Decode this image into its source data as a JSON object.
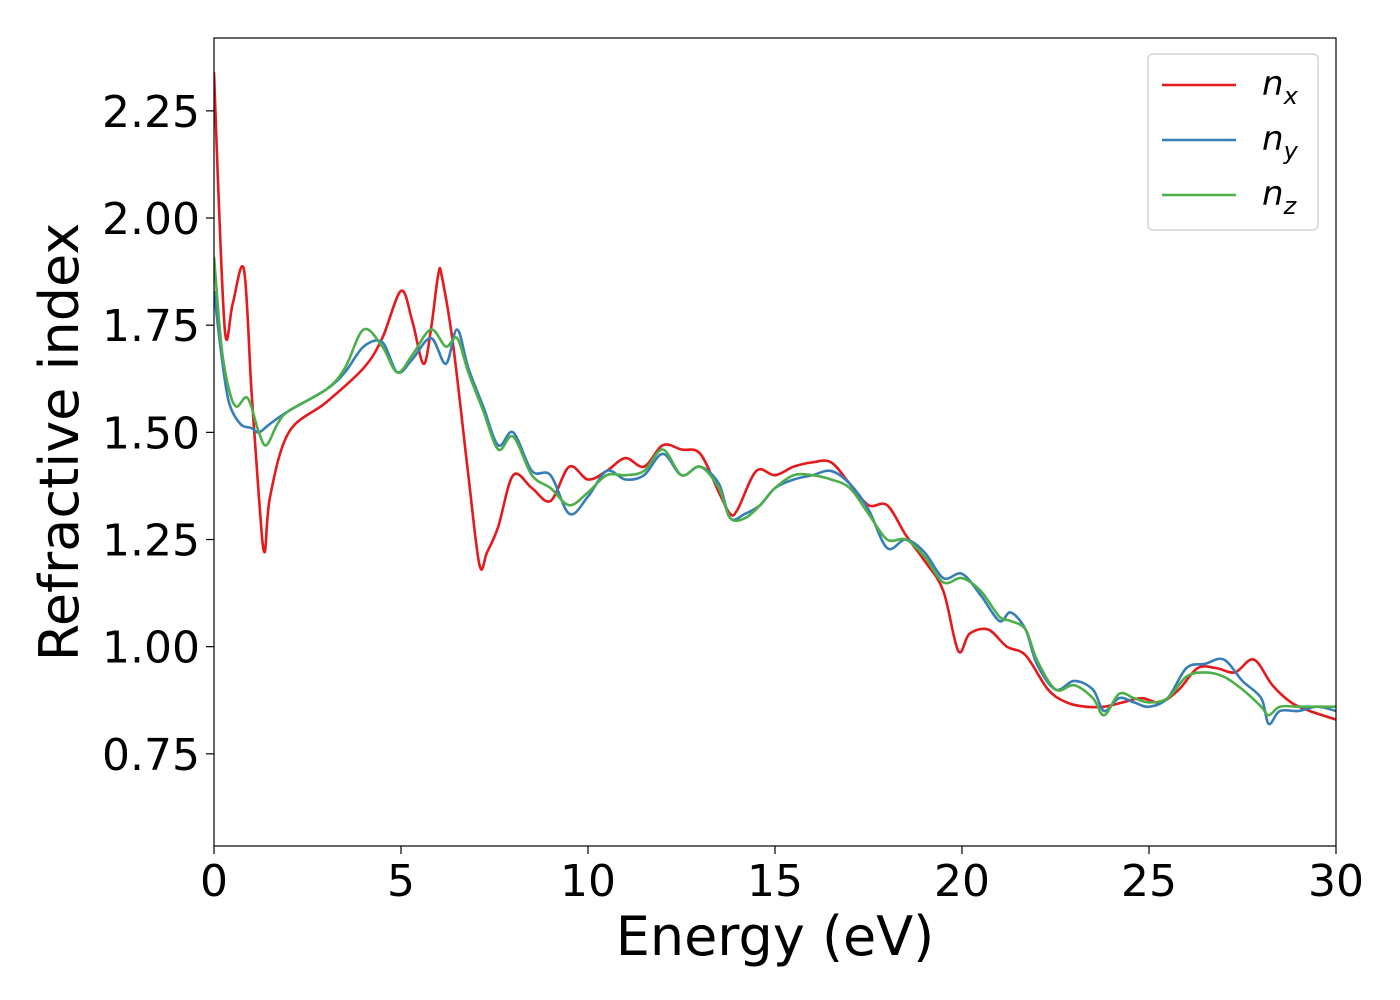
{
  "chart_data": {
    "type": "line",
    "title": "",
    "xlabel": "Energy (eV)",
    "ylabel": "Refractive index",
    "xlim": [
      0,
      30
    ],
    "ylim": [
      0.535,
      2.42
    ],
    "xticks": [
      "0",
      "5",
      "10",
      "15",
      "20",
      "25",
      "30"
    ],
    "yticks": [
      "0.75",
      "1.00",
      "1.25",
      "1.50",
      "1.75",
      "2.00",
      "2.25"
    ],
    "grid": false,
    "legend_position": "top-right",
    "series": [
      {
        "name": "n",
        "subscript": "x",
        "color": "#e41a1c",
        "x": [
          0,
          0.1,
          0.3,
          0.5,
          0.8,
          1.0,
          1.2,
          1.35,
          1.5,
          2.0,
          3.0,
          4.0,
          4.5,
          5.0,
          5.3,
          5.6,
          5.8,
          6.0,
          6.1,
          6.4,
          6.8,
          7.1,
          7.3,
          7.6,
          8.0,
          8.5,
          9.0,
          9.5,
          10.0,
          10.5,
          11.0,
          11.5,
          12.0,
          12.5,
          13.0,
          13.5,
          13.8,
          14.0,
          14.5,
          15.0,
          15.5,
          16.0,
          16.5,
          17.0,
          17.5,
          18.0,
          18.5,
          19.0,
          19.5,
          19.9,
          20.2,
          20.7,
          21.2,
          21.7,
          22.3,
          22.8,
          23.3,
          23.8,
          24.3,
          24.8,
          25.3,
          25.8,
          26.3,
          26.8,
          27.3,
          27.8,
          28.3,
          28.8,
          29.3,
          30.0
        ],
        "values": [
          2.34,
          2.1,
          1.73,
          1.8,
          1.88,
          1.6,
          1.35,
          1.22,
          1.35,
          1.5,
          1.57,
          1.65,
          1.72,
          1.83,
          1.76,
          1.66,
          1.74,
          1.87,
          1.86,
          1.7,
          1.4,
          1.19,
          1.22,
          1.28,
          1.4,
          1.37,
          1.34,
          1.42,
          1.39,
          1.41,
          1.44,
          1.42,
          1.47,
          1.46,
          1.45,
          1.36,
          1.31,
          1.32,
          1.41,
          1.4,
          1.42,
          1.43,
          1.43,
          1.38,
          1.33,
          1.33,
          1.26,
          1.2,
          1.13,
          0.99,
          1.03,
          1.04,
          1.0,
          0.98,
          0.9,
          0.87,
          0.86,
          0.86,
          0.87,
          0.88,
          0.87,
          0.9,
          0.95,
          0.95,
          0.94,
          0.97,
          0.91,
          0.87,
          0.85,
          0.83
        ]
      },
      {
        "name": "n",
        "subscript": "y",
        "color": "#377eb8",
        "x": [
          0,
          0.2,
          0.4,
          0.7,
          1.0,
          1.2,
          1.5,
          2.0,
          3.0,
          3.5,
          4.0,
          4.5,
          4.9,
          5.3,
          5.8,
          6.2,
          6.5,
          6.8,
          7.2,
          7.6,
          8.0,
          8.5,
          9.0,
          9.5,
          10.0,
          10.5,
          11.0,
          11.5,
          12.0,
          12.5,
          13.0,
          13.5,
          13.8,
          14.2,
          14.6,
          15.0,
          15.5,
          16.0,
          16.5,
          17.0,
          17.5,
          18.0,
          18.5,
          19.0,
          19.5,
          20.0,
          20.5,
          21.0,
          21.3,
          21.7,
          22.0,
          22.5,
          23.0,
          23.5,
          23.8,
          24.2,
          24.6,
          25.0,
          25.5,
          26.0,
          26.5,
          27.0,
          27.5,
          28.0,
          28.2,
          28.5,
          29.0,
          29.5,
          30.0
        ],
        "values": [
          1.83,
          1.68,
          1.57,
          1.52,
          1.51,
          1.5,
          1.52,
          1.55,
          1.6,
          1.64,
          1.7,
          1.71,
          1.64,
          1.67,
          1.72,
          1.66,
          1.74,
          1.65,
          1.56,
          1.47,
          1.5,
          1.41,
          1.4,
          1.31,
          1.35,
          1.41,
          1.39,
          1.4,
          1.45,
          1.4,
          1.42,
          1.38,
          1.3,
          1.31,
          1.33,
          1.37,
          1.39,
          1.4,
          1.41,
          1.38,
          1.32,
          1.23,
          1.25,
          1.22,
          1.16,
          1.17,
          1.12,
          1.06,
          1.08,
          1.04,
          0.96,
          0.9,
          0.92,
          0.9,
          0.85,
          0.88,
          0.87,
          0.86,
          0.88,
          0.95,
          0.96,
          0.97,
          0.92,
          0.88,
          0.82,
          0.85,
          0.85,
          0.86,
          0.85
        ]
      },
      {
        "name": "n",
        "subscript": "z",
        "color": "#4daf4a",
        "x": [
          0,
          0.2,
          0.4,
          0.6,
          0.9,
          1.2,
          1.4,
          1.7,
          2.0,
          3.0,
          3.5,
          4.0,
          4.5,
          4.9,
          5.3,
          5.8,
          6.2,
          6.5,
          6.8,
          7.2,
          7.6,
          8.0,
          8.5,
          9.0,
          9.5,
          10.0,
          10.5,
          11.0,
          11.5,
          12.0,
          12.5,
          13.0,
          13.5,
          13.8,
          14.2,
          14.6,
          15.0,
          15.5,
          16.0,
          16.5,
          17.0,
          17.5,
          18.0,
          18.5,
          19.0,
          19.5,
          20.0,
          20.5,
          21.0,
          21.3,
          21.7,
          22.0,
          22.5,
          23.0,
          23.5,
          23.8,
          24.2,
          24.6,
          25.0,
          25.5,
          26.0,
          26.5,
          27.0,
          27.5,
          28.0,
          28.2,
          28.5,
          29.0,
          29.5,
          30.0
        ],
        "values": [
          1.91,
          1.7,
          1.6,
          1.56,
          1.58,
          1.5,
          1.47,
          1.52,
          1.55,
          1.6,
          1.65,
          1.74,
          1.7,
          1.64,
          1.68,
          1.74,
          1.7,
          1.72,
          1.64,
          1.55,
          1.46,
          1.49,
          1.4,
          1.37,
          1.33,
          1.36,
          1.4,
          1.4,
          1.41,
          1.46,
          1.4,
          1.42,
          1.37,
          1.3,
          1.3,
          1.33,
          1.37,
          1.4,
          1.4,
          1.39,
          1.37,
          1.31,
          1.25,
          1.25,
          1.21,
          1.15,
          1.16,
          1.13,
          1.07,
          1.06,
          1.04,
          0.97,
          0.9,
          0.91,
          0.88,
          0.84,
          0.89,
          0.88,
          0.87,
          0.88,
          0.93,
          0.94,
          0.93,
          0.9,
          0.86,
          0.84,
          0.86,
          0.86,
          0.86,
          0.86
        ]
      }
    ]
  }
}
